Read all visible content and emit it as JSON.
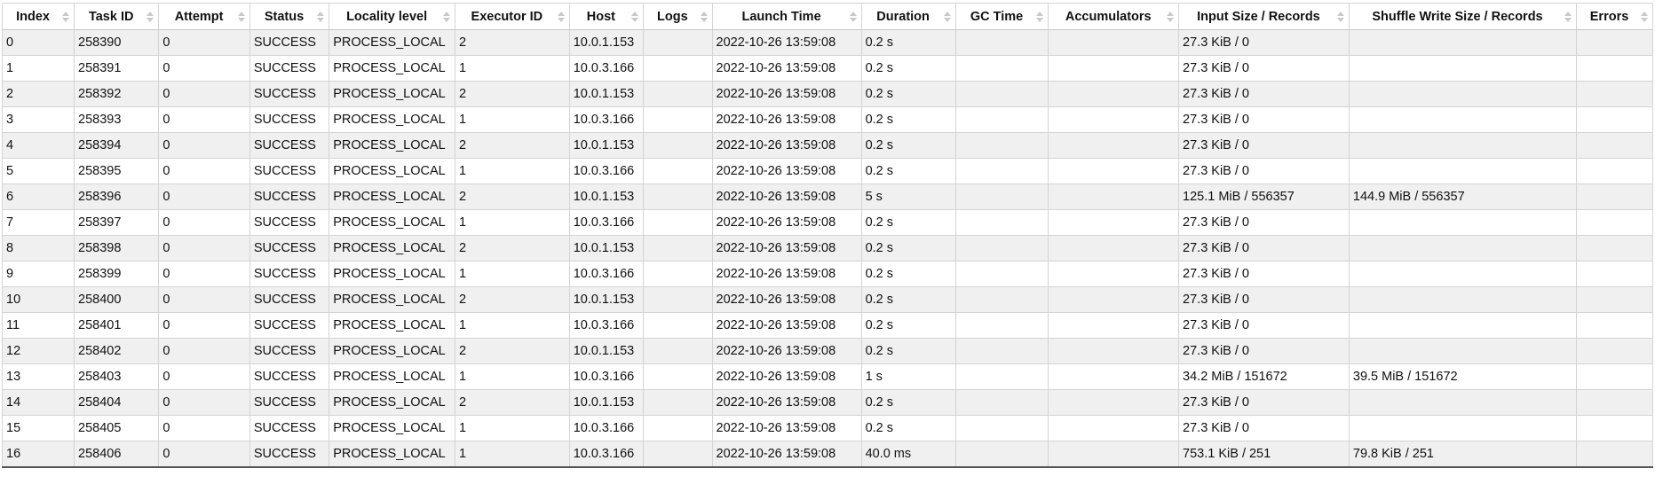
{
  "table": {
    "columns": [
      "Index",
      "Task ID",
      "Attempt",
      "Status",
      "Locality level",
      "Executor ID",
      "Host",
      "Logs",
      "Launch Time",
      "Duration",
      "GC Time",
      "Accumulators",
      "Input Size / Records",
      "Shuffle Write Size / Records",
      "Errors"
    ],
    "rows": [
      [
        "0",
        "258390",
        "0",
        "SUCCESS",
        "PROCESS_LOCAL",
        "2",
        "10.0.1.153",
        "",
        "2022-10-26 13:59:08",
        "0.2 s",
        "",
        "",
        "27.3 KiB / 0",
        "",
        ""
      ],
      [
        "1",
        "258391",
        "0",
        "SUCCESS",
        "PROCESS_LOCAL",
        "1",
        "10.0.3.166",
        "",
        "2022-10-26 13:59:08",
        "0.2 s",
        "",
        "",
        "27.3 KiB / 0",
        "",
        ""
      ],
      [
        "2",
        "258392",
        "0",
        "SUCCESS",
        "PROCESS_LOCAL",
        "2",
        "10.0.1.153",
        "",
        "2022-10-26 13:59:08",
        "0.2 s",
        "",
        "",
        "27.3 KiB / 0",
        "",
        ""
      ],
      [
        "3",
        "258393",
        "0",
        "SUCCESS",
        "PROCESS_LOCAL",
        "1",
        "10.0.3.166",
        "",
        "2022-10-26 13:59:08",
        "0.2 s",
        "",
        "",
        "27.3 KiB / 0",
        "",
        ""
      ],
      [
        "4",
        "258394",
        "0",
        "SUCCESS",
        "PROCESS_LOCAL",
        "2",
        "10.0.1.153",
        "",
        "2022-10-26 13:59:08",
        "0.2 s",
        "",
        "",
        "27.3 KiB / 0",
        "",
        ""
      ],
      [
        "5",
        "258395",
        "0",
        "SUCCESS",
        "PROCESS_LOCAL",
        "1",
        "10.0.3.166",
        "",
        "2022-10-26 13:59:08",
        "0.2 s",
        "",
        "",
        "27.3 KiB / 0",
        "",
        ""
      ],
      [
        "6",
        "258396",
        "0",
        "SUCCESS",
        "PROCESS_LOCAL",
        "2",
        "10.0.1.153",
        "",
        "2022-10-26 13:59:08",
        "5 s",
        "",
        "",
        "125.1 MiB / 556357",
        "144.9 MiB / 556357",
        ""
      ],
      [
        "7",
        "258397",
        "0",
        "SUCCESS",
        "PROCESS_LOCAL",
        "1",
        "10.0.3.166",
        "",
        "2022-10-26 13:59:08",
        "0.2 s",
        "",
        "",
        "27.3 KiB / 0",
        "",
        ""
      ],
      [
        "8",
        "258398",
        "0",
        "SUCCESS",
        "PROCESS_LOCAL",
        "2",
        "10.0.1.153",
        "",
        "2022-10-26 13:59:08",
        "0.2 s",
        "",
        "",
        "27.3 KiB / 0",
        "",
        ""
      ],
      [
        "9",
        "258399",
        "0",
        "SUCCESS",
        "PROCESS_LOCAL",
        "1",
        "10.0.3.166",
        "",
        "2022-10-26 13:59:08",
        "0.2 s",
        "",
        "",
        "27.3 KiB / 0",
        "",
        ""
      ],
      [
        "10",
        "258400",
        "0",
        "SUCCESS",
        "PROCESS_LOCAL",
        "2",
        "10.0.1.153",
        "",
        "2022-10-26 13:59:08",
        "0.2 s",
        "",
        "",
        "27.3 KiB / 0",
        "",
        ""
      ],
      [
        "11",
        "258401",
        "0",
        "SUCCESS",
        "PROCESS_LOCAL",
        "1",
        "10.0.3.166",
        "",
        "2022-10-26 13:59:08",
        "0.2 s",
        "",
        "",
        "27.3 KiB / 0",
        "",
        ""
      ],
      [
        "12",
        "258402",
        "0",
        "SUCCESS",
        "PROCESS_LOCAL",
        "2",
        "10.0.1.153",
        "",
        "2022-10-26 13:59:08",
        "0.2 s",
        "",
        "",
        "27.3 KiB / 0",
        "",
        ""
      ],
      [
        "13",
        "258403",
        "0",
        "SUCCESS",
        "PROCESS_LOCAL",
        "1",
        "10.0.3.166",
        "",
        "2022-10-26 13:59:08",
        "1 s",
        "",
        "",
        "34.2 MiB / 151672",
        "39.5 MiB / 151672",
        ""
      ],
      [
        "14",
        "258404",
        "0",
        "SUCCESS",
        "PROCESS_LOCAL",
        "2",
        "10.0.1.153",
        "",
        "2022-10-26 13:59:08",
        "0.2 s",
        "",
        "",
        "27.3 KiB / 0",
        "",
        ""
      ],
      [
        "15",
        "258405",
        "0",
        "SUCCESS",
        "PROCESS_LOCAL",
        "1",
        "10.0.3.166",
        "",
        "2022-10-26 13:59:08",
        "0.2 s",
        "",
        "",
        "27.3 KiB / 0",
        "",
        ""
      ],
      [
        "16",
        "258406",
        "0",
        "SUCCESS",
        "PROCESS_LOCAL",
        "1",
        "10.0.3.166",
        "",
        "2022-10-26 13:59:08",
        "40.0 ms",
        "",
        "",
        "753.1 KiB / 251",
        "79.8 KiB / 251",
        ""
      ]
    ]
  },
  "colors": {
    "stripe": "#f0f0f0",
    "border": "#d4d4d4",
    "sort_arrow": "#c9c9c9"
  },
  "icons": {
    "sort": "sort-arrows-icon"
  }
}
